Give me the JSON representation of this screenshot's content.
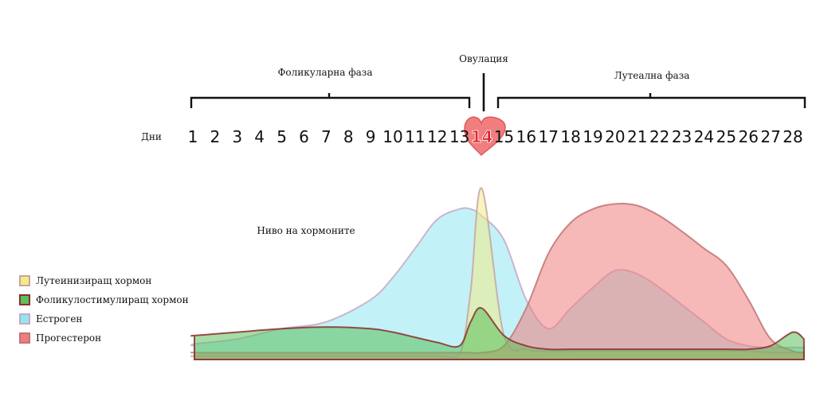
{
  "chart_data": {
    "type": "area",
    "annotations": {
      "follicular": "Фоликуларна фаза",
      "ovulation": "Овулация",
      "luteal": "Лутеална фаза",
      "days_label": "Дни",
      "hormone_level": "Ниво на хормоните"
    },
    "days": [
      1,
      2,
      3,
      4,
      5,
      6,
      7,
      8,
      9,
      10,
      11,
      12,
      13,
      14,
      15,
      16,
      17,
      18,
      19,
      20,
      21,
      22,
      23,
      24,
      25,
      26,
      27,
      28
    ],
    "highlight_day": 14,
    "x": [
      0.5,
      1,
      3,
      5,
      7,
      9,
      10,
      11,
      12,
      13,
      13.5,
      14,
      15,
      16,
      17,
      18,
      19,
      20,
      21,
      22,
      23,
      24,
      25,
      26,
      27,
      28,
      28.5
    ],
    "series": [
      {
        "name": "Лутеинизиращ хормон",
        "fill": "#f2eb86",
        "stroke": "#c9a3a3",
        "values": [
          2,
          2,
          2,
          2,
          2,
          2,
          2,
          2,
          2,
          3,
          40,
          100,
          14,
          6,
          5,
          5,
          5,
          5,
          5,
          5,
          5,
          5,
          5,
          5,
          4,
          4,
          4
        ]
      },
      {
        "name": "Фоликулостимулиращ хормон",
        "fill": "#5cc05c",
        "stroke": "#8b2e2e",
        "values": [
          14,
          14,
          16,
          18,
          19,
          18,
          16,
          13,
          10,
          8,
          22,
          30,
          14,
          8,
          6,
          6,
          6,
          6,
          6,
          6,
          6,
          6,
          6,
          6,
          8,
          16,
          12
        ]
      },
      {
        "name": "Естроген",
        "fill": "#8fe8f0",
        "stroke": "#c8a8c8",
        "values": [
          8,
          9,
          12,
          18,
          22,
          35,
          48,
          65,
          82,
          88,
          88,
          84,
          70,
          35,
          18,
          30,
          42,
          52,
          50,
          42,
          32,
          22,
          12,
          8,
          7,
          7,
          7
        ]
      },
      {
        "name": "Прогестерон",
        "fill": "#f07e7e",
        "stroke": "#c07575",
        "values": [
          4,
          4,
          4,
          4,
          4,
          4,
          4,
          4,
          4,
          4,
          4,
          4,
          8,
          30,
          62,
          80,
          88,
          91,
          90,
          84,
          75,
          65,
          55,
          35,
          12,
          5,
          4
        ]
      }
    ]
  }
}
